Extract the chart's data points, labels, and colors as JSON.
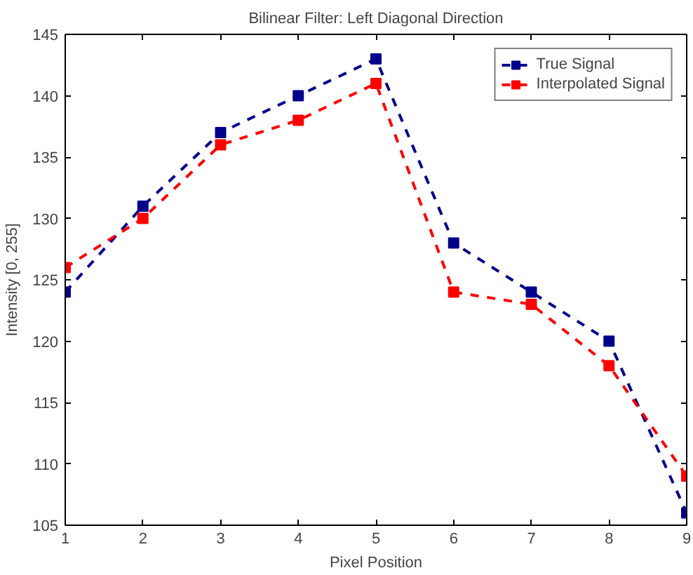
{
  "chart_data": {
    "type": "line",
    "title": "Bilinear Filter: Left Diagonal Direction",
    "xlabel": "Pixel Position",
    "ylabel": "Intensity [0, 255]",
    "x": [
      1,
      2,
      3,
      4,
      5,
      6,
      7,
      8,
      9
    ],
    "series": [
      {
        "name": "True Signal",
        "color": "#00008b",
        "values": [
          124,
          131,
          137,
          140,
          143,
          128,
          124,
          120,
          106
        ]
      },
      {
        "name": "Interpolated Signal",
        "color": "#ff0000",
        "values": [
          126,
          130,
          136,
          138,
          141,
          124,
          123,
          118,
          109
        ]
      }
    ],
    "xlim": [
      1,
      9
    ],
    "xticks": [
      1,
      2,
      3,
      4,
      5,
      6,
      7,
      8,
      9
    ],
    "ylim": [
      105,
      145
    ],
    "yticks": [
      105,
      110,
      115,
      120,
      125,
      130,
      135,
      140,
      145
    ],
    "grid": false,
    "legend": "top right",
    "marker": "square",
    "line_style": "dashed"
  }
}
